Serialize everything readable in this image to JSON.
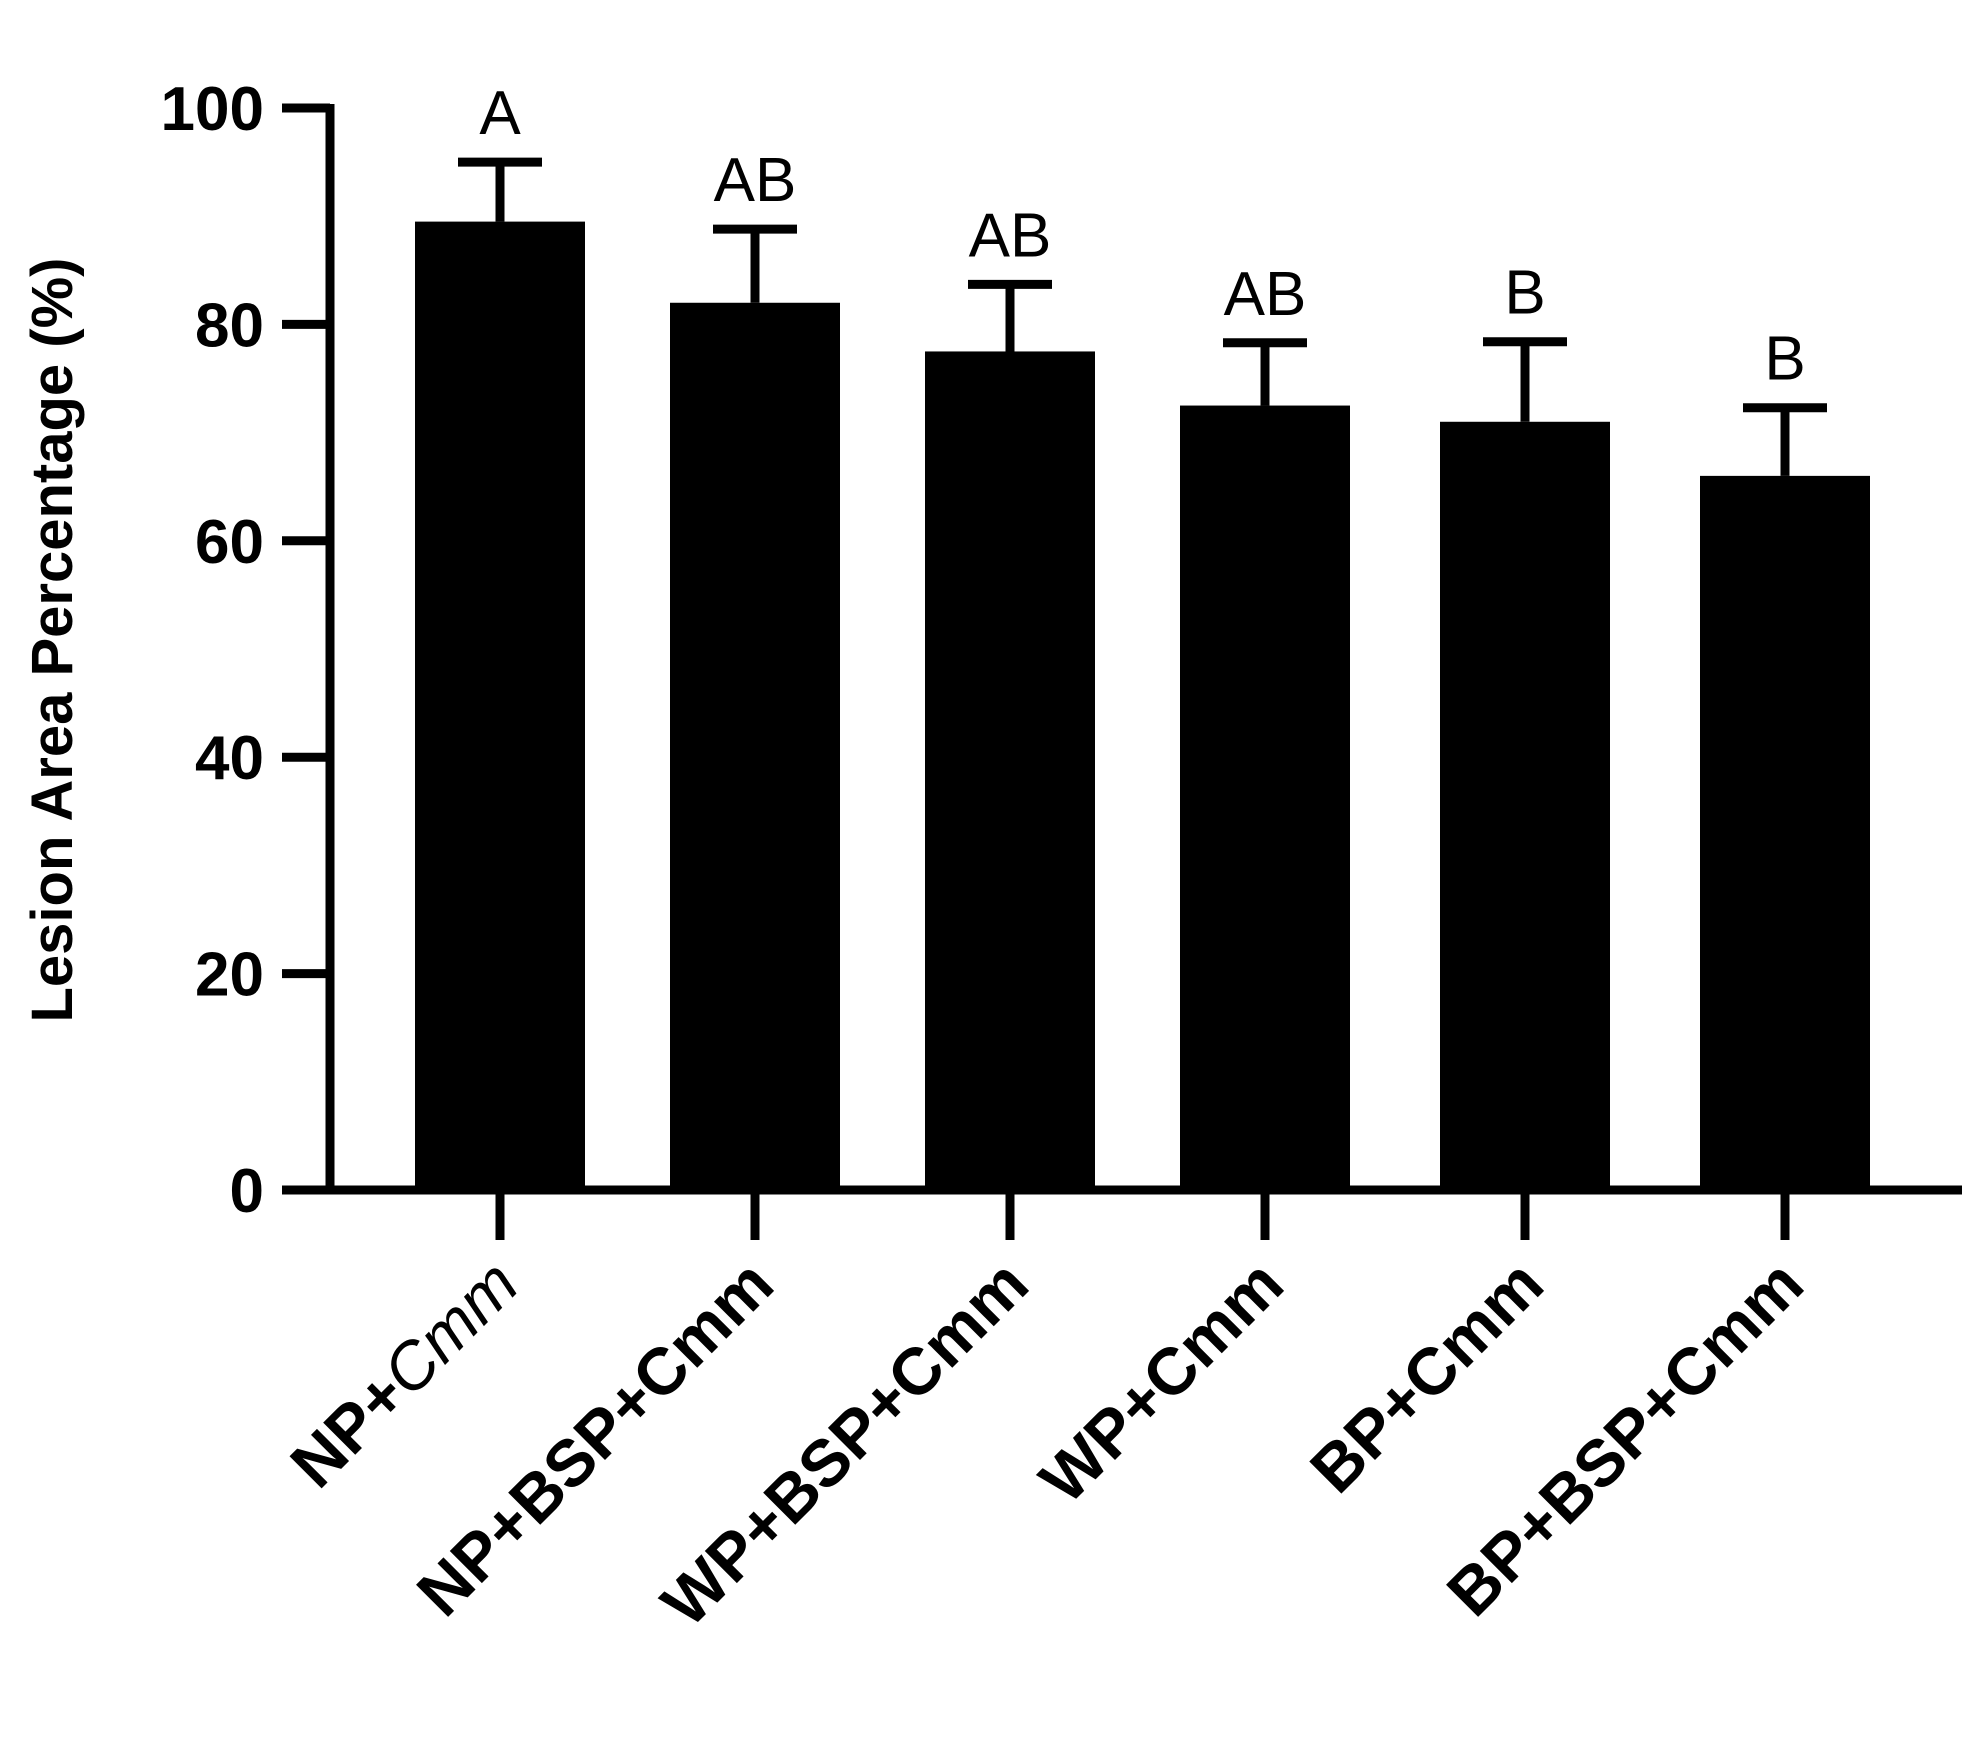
{
  "chart_data": {
    "type": "bar",
    "ylabel": "Lesion Area Percentage (%)",
    "ylim": [
      0,
      100
    ],
    "yticks": [
      0,
      20,
      40,
      60,
      80,
      100
    ],
    "categories": [
      {
        "prefix": "NP+",
        "suffix": "Cmm",
        "suffix_italic": true
      },
      {
        "prefix": "NP+BSP+Cmm",
        "suffix": "",
        "suffix_italic": false
      },
      {
        "prefix": "WP+BSP+Cmm",
        "suffix": "",
        "suffix_italic": false
      },
      {
        "prefix": "WP+Cmm",
        "suffix": "",
        "suffix_italic": false
      },
      {
        "prefix": "BP+Cmm",
        "suffix": "",
        "suffix_italic": false
      },
      {
        "prefix": "BP+BSP+Cmm",
        "suffix": "",
        "suffix_italic": false
      }
    ],
    "values": [
      89.5,
      82.0,
      77.5,
      72.5,
      71.0,
      66.0
    ],
    "errors": [
      5.5,
      6.8,
      6.2,
      5.8,
      7.4,
      6.3
    ],
    "significance": [
      "A",
      "AB",
      "AB",
      "AB",
      "B",
      "B"
    ],
    "bar_color": "#000000",
    "grid": false
  }
}
